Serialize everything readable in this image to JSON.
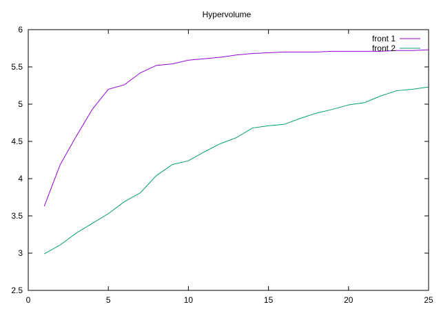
{
  "chart_data": {
    "type": "line",
    "title": "Hypervolume",
    "xlabel": "",
    "ylabel": "",
    "xlim": [
      0,
      25
    ],
    "ylim": [
      2.5,
      6
    ],
    "xticks": [
      0,
      5,
      10,
      15,
      20,
      25
    ],
    "yticks": [
      2.5,
      3,
      3.5,
      4,
      4.5,
      5,
      5.5,
      6
    ],
    "grid": false,
    "legend_position": "top-right",
    "x": [
      1,
      2,
      3,
      4,
      5,
      6,
      7,
      8,
      9,
      10,
      11,
      12,
      13,
      14,
      15,
      16,
      17,
      18,
      19,
      20,
      21,
      22,
      23,
      24,
      25
    ],
    "series": [
      {
        "name": "front 1",
        "color": "#9400d3",
        "values": [
          3.63,
          4.19,
          4.57,
          4.93,
          5.2,
          5.26,
          5.42,
          5.52,
          5.54,
          5.59,
          5.61,
          5.63,
          5.66,
          5.68,
          5.69,
          5.7,
          5.7,
          5.7,
          5.71,
          5.71,
          5.71,
          5.71,
          5.72,
          5.72,
          5.73
        ]
      },
      {
        "name": "front 2",
        "color": "#009e73",
        "values": [
          2.99,
          3.11,
          3.27,
          3.4,
          3.53,
          3.69,
          3.81,
          4.04,
          4.19,
          4.24,
          4.36,
          4.47,
          4.55,
          4.68,
          4.71,
          4.73,
          4.81,
          4.88,
          4.93,
          4.99,
          5.02,
          5.11,
          5.18,
          5.2,
          5.23
        ]
      }
    ]
  }
}
